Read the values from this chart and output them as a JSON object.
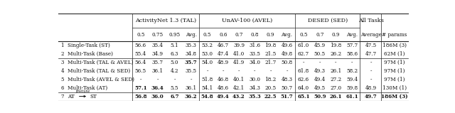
{
  "rows": [
    {
      "idx": "1",
      "name": "Single-Task (ST)",
      "tal": [
        "56.6",
        "35.4",
        "5.1",
        "35.3"
      ],
      "avel": [
        "53.2",
        "46.7",
        "39.9",
        "31.6",
        "19.8",
        "49.6"
      ],
      "sed": [
        "61.0",
        "45.9",
        "19.8",
        "57.7"
      ],
      "avg": "47.5",
      "params": "186M (3)"
    },
    {
      "idx": "2",
      "name": "Multi-Task (Base)",
      "tal": [
        "55.4",
        "34.9",
        "6.3",
        "34.8"
      ],
      "avel": [
        "53.0",
        "47.4",
        "41.0",
        "33.5",
        "21.5",
        "49.8"
      ],
      "sed": [
        "62.7",
        "50.5",
        "26.2",
        "58.6"
      ],
      "avg": "47.7",
      "params": "62M (1)"
    },
    {
      "idx": "3",
      "name": "Multi-Task (TAL & AVEL)",
      "tal": [
        "56.4",
        "35.7",
        "5.0",
        "35.7"
      ],
      "avel": [
        "54.0",
        "48.9",
        "41.9",
        "34.0",
        "21.7",
        "50.8"
      ],
      "sed": [
        "-",
        "-",
        "-",
        "-"
      ],
      "avg": "-",
      "params": "97M (1)"
    },
    {
      "idx": "4",
      "name": "Multi-Task (TAL & SED)",
      "tal": [
        "56.5",
        "36.1",
        "4.2",
        "35.5"
      ],
      "avel": [
        "-",
        "-",
        "-",
        "-",
        "-",
        "-"
      ],
      "sed": [
        "61.8",
        "49.3",
        "26.1",
        "58.2"
      ],
      "avg": "-",
      "params": "97M (1)"
    },
    {
      "idx": "5",
      "name": "Multi-Task (AVEL & SED)",
      "tal": [
        "-",
        "-",
        "-",
        "-"
      ],
      "avel": [
        "51.8",
        "46.8",
        "40.1",
        "30.0",
        "18.2",
        "48.3"
      ],
      "sed": [
        "62.6",
        "49.4",
        "27.2",
        "59.4"
      ],
      "avg": "-",
      "params": "97M (1)"
    },
    {
      "idx": "6",
      "name": "Multi-Task (AT)",
      "tal": [
        "57.1",
        "36.4",
        "5.5",
        "36.1"
      ],
      "avel": [
        "54.1",
        "48.6",
        "42.1",
        "34.3",
        "20.5",
        "50.7"
      ],
      "sed": [
        "64.0",
        "49.5",
        "27.0",
        "59.8"
      ],
      "avg": "48.9",
      "params": "130M (1)"
    },
    {
      "idx": "7",
      "name": "AT_ARROW_ST",
      "tal": [
        "56.8",
        "36.0",
        "6.7",
        "36.2"
      ],
      "avel": [
        "54.8",
        "49.4",
        "43.2",
        "35.3",
        "22.5",
        "51.7"
      ],
      "sed": [
        "65.1",
        "50.9",
        "26.1",
        "61.1"
      ],
      "avg": "49.7",
      "params": "186M (3)"
    }
  ],
  "bold_cells": {
    "2": [
      5
    ],
    "5": [
      2,
      3
    ],
    "6": [
      2,
      3,
      4,
      5,
      6,
      7,
      8,
      9,
      10,
      11,
      12,
      13,
      14,
      15,
      16,
      17
    ]
  },
  "line_color": "#222222",
  "font_color": "#111111"
}
